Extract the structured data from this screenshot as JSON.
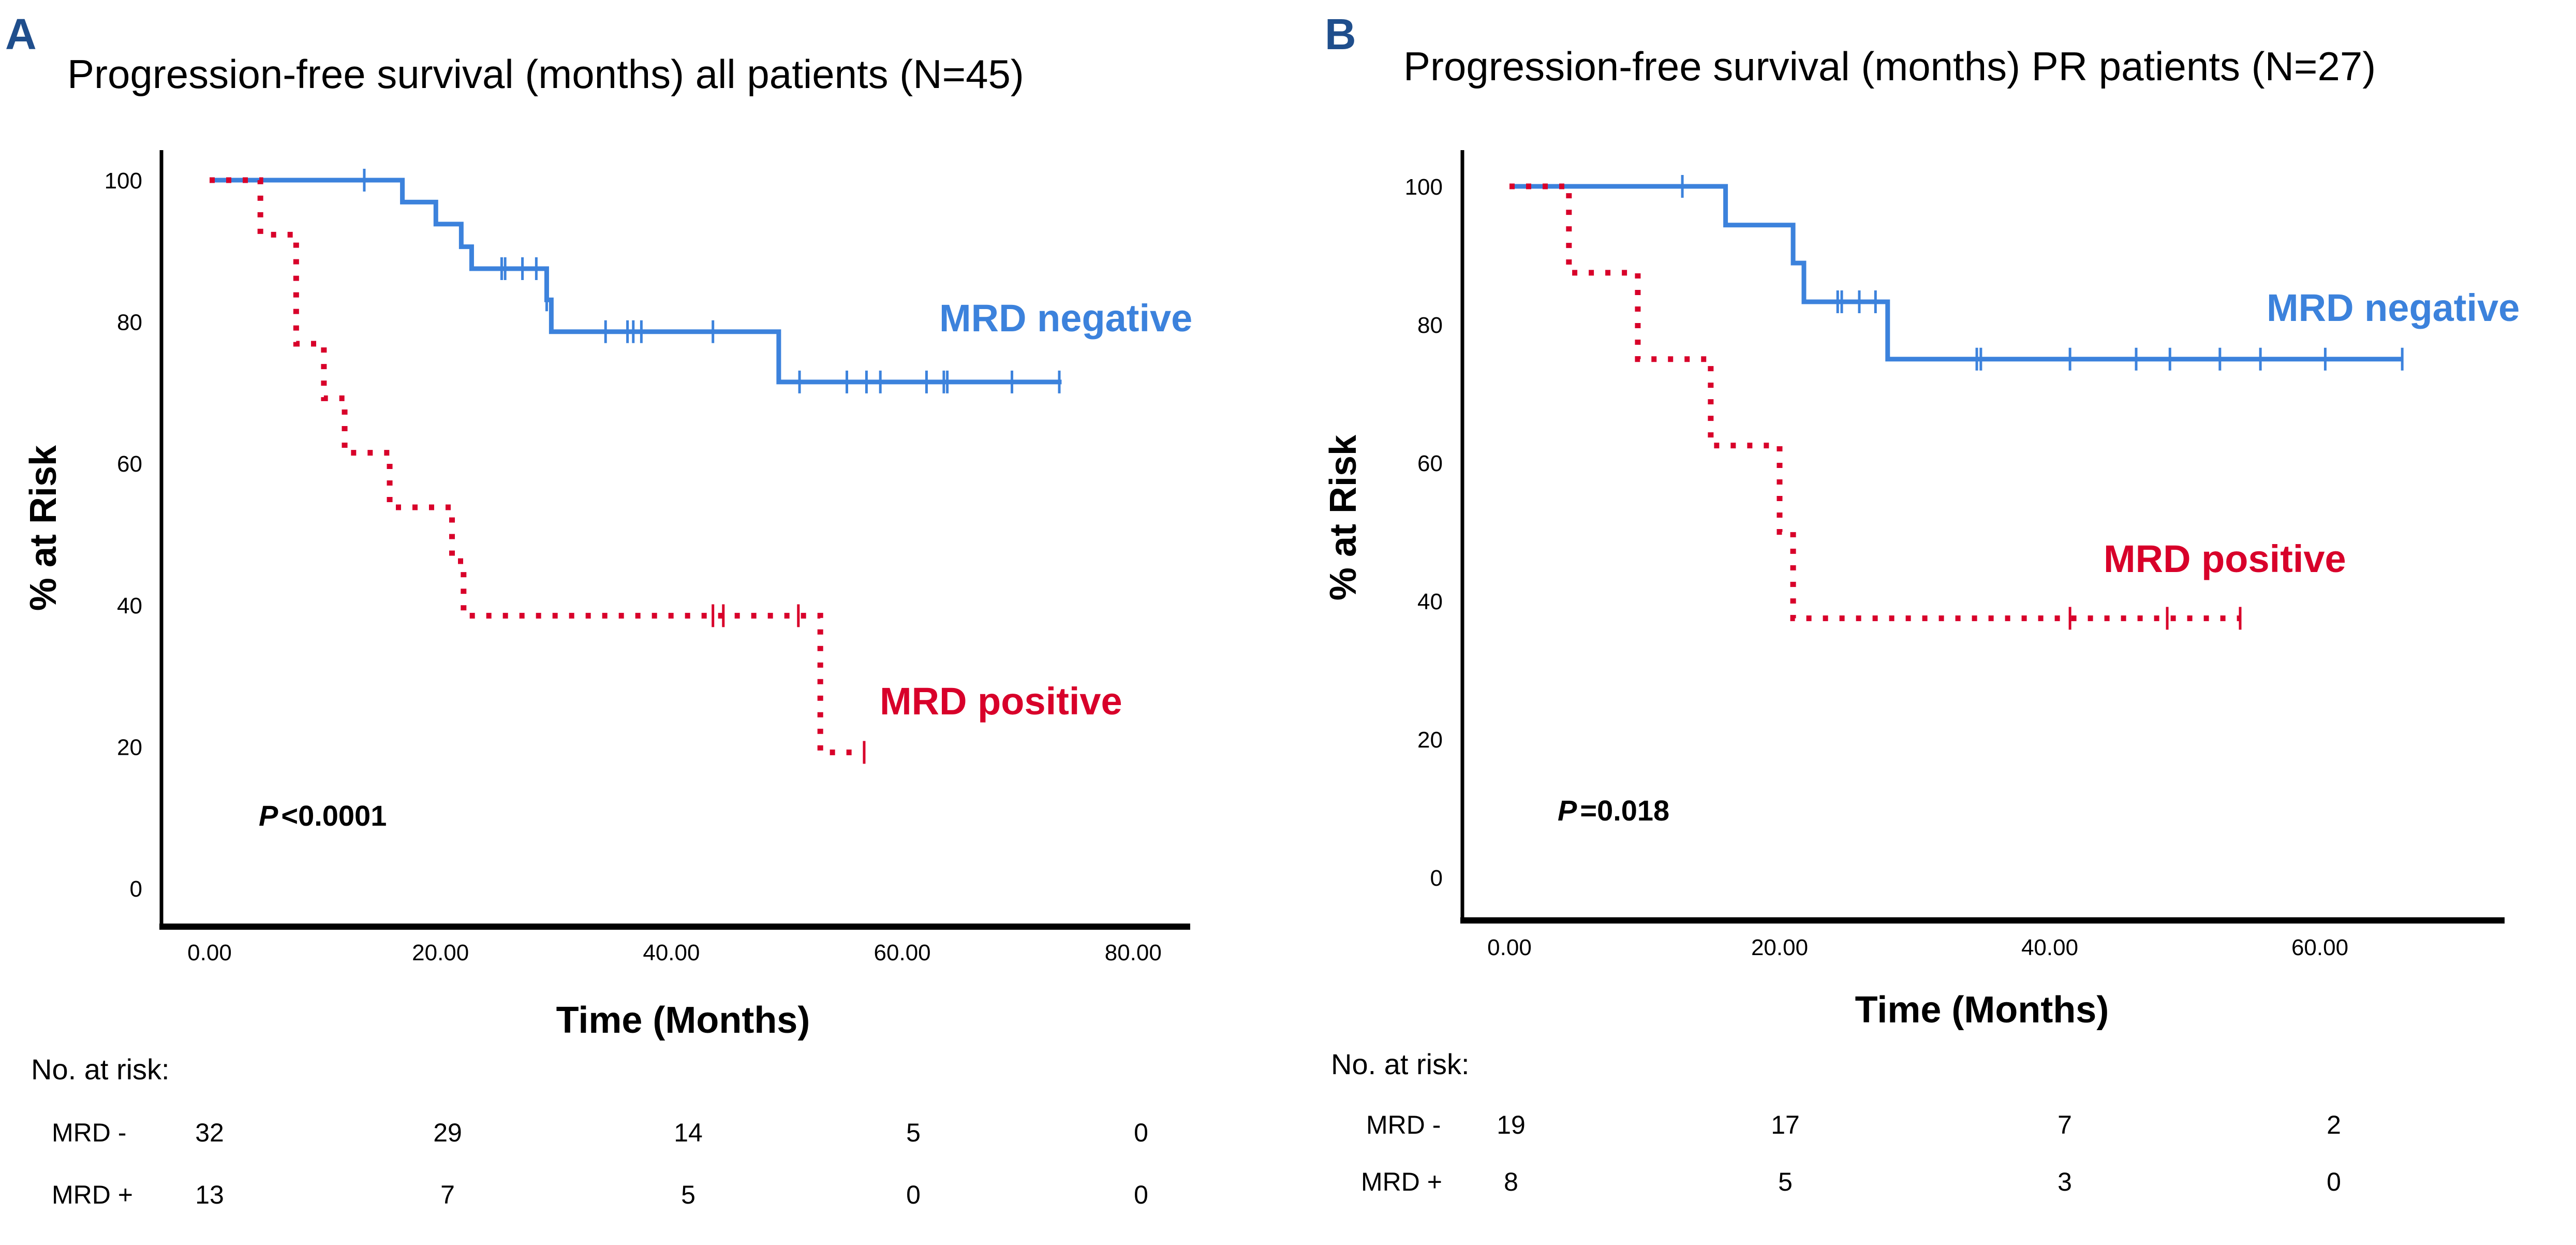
{
  "colors": {
    "mrd_negative": "#3C82DC",
    "mrd_positive": "#D8002A",
    "panel_letter": "#1F4E8C",
    "axis": "#000000"
  },
  "chart_data": [
    {
      "panel": "A",
      "type": "line",
      "subtype": "kaplan-meier",
      "title": "Progression-free survival (months) all patients (N=45)",
      "xlabel": "Time (Months)",
      "ylabel": "% at Risk",
      "xlim": [
        0,
        80
      ],
      "ylim": [
        0,
        100
      ],
      "xticks": [
        0,
        20,
        40,
        60,
        80
      ],
      "xtick_labels": [
        "0.00",
        "20.00",
        "40.00",
        "60.00",
        "80.00"
      ],
      "yticks": [
        0,
        20,
        40,
        60,
        80,
        100
      ],
      "ytick_labels": [
        "0",
        "20",
        "40",
        "60",
        "80",
        "100"
      ],
      "grid": false,
      "annotation": {
        "p_prefix": "P",
        "p_text": "<0.0001"
      },
      "series": [
        {
          "name": "MRD negative",
          "style": "solid",
          "color_key": "mrd_negative",
          "steps": [
            [
              0,
              100
            ],
            [
              16.7,
              96.9
            ],
            [
              19.6,
              93.8
            ],
            [
              21.8,
              90.6
            ],
            [
              22.7,
              87.5
            ],
            [
              29.2,
              83.1
            ],
            [
              29.6,
              78.6
            ],
            [
              49.3,
              71.5
            ]
          ],
          "end": 73.8,
          "censored": [
            13.4,
            25.3,
            25.6,
            27.1,
            28.3,
            29.2,
            34.3,
            36.2,
            36.7,
            37.4,
            43.6,
            51.1,
            55.2,
            56.9,
            58.1,
            62.1,
            63.6,
            63.9,
            69.5,
            73.6
          ]
        },
        {
          "name": "MRD positive",
          "style": "dotted",
          "color_key": "mrd_positive",
          "steps": [
            [
              0,
              100
            ],
            [
              4.4,
              92.3
            ],
            [
              7.5,
              76.9
            ],
            [
              9.9,
              69.2
            ],
            [
              11.7,
              61.5
            ],
            [
              15.6,
              53.8
            ],
            [
              21.0,
              46.2
            ],
            [
              22.0,
              38.5
            ],
            [
              52.9,
              19.2
            ]
          ],
          "end": 56.7,
          "censored": [
            43.6,
            44.5,
            51.0,
            56.7
          ]
        }
      ],
      "risk_table": {
        "heading": "No. at risk:",
        "rows": [
          {
            "label": "MRD -",
            "values": [
              "32",
              "29",
              "14",
              "5",
              "0"
            ]
          },
          {
            "label": "MRD +",
            "values": [
              "13",
              "7",
              "5",
              "0",
              "0"
            ]
          }
        ]
      }
    },
    {
      "panel": "B",
      "type": "line",
      "subtype": "kaplan-meier",
      "title": "Progression-free survival (months) PR patients (N=27)",
      "xlabel": "Time (Months)",
      "ylabel": "% at Risk",
      "xlim": [
        0,
        70
      ],
      "ylim": [
        0,
        100
      ],
      "xticks": [
        0,
        20,
        40,
        60
      ],
      "xtick_labels": [
        "0.00",
        "20.00",
        "40.00",
        "60.00"
      ],
      "yticks": [
        0,
        20,
        40,
        60,
        80,
        100
      ],
      "ytick_labels": [
        "0",
        "20",
        "40",
        "60",
        "80",
        "100"
      ],
      "grid": false,
      "annotation": {
        "p_prefix": "P",
        "p_text": "=0.018"
      },
      "series": [
        {
          "name": "MRD negative",
          "style": "solid",
          "color_key": "mrd_negative",
          "steps": [
            [
              0,
              100
            ],
            [
              16.0,
              94.4
            ],
            [
              21.0,
              88.9
            ],
            [
              21.8,
              83.3
            ],
            [
              28.0,
              75.0
            ]
          ],
          "end": 66.1,
          "censored": [
            12.8,
            24.3,
            24.6,
            25.9,
            27.1,
            34.6,
            34.9,
            41.5,
            46.4,
            48.9,
            52.6,
            55.6,
            60.4,
            66.1
          ]
        },
        {
          "name": "MRD positive",
          "style": "dotted",
          "color_key": "mrd_positive",
          "steps": [
            [
              0,
              100
            ],
            [
              4.4,
              87.5
            ],
            [
              9.5,
              75.0
            ],
            [
              14.9,
              62.5
            ],
            [
              20.0,
              50.0
            ],
            [
              21.0,
              37.5
            ]
          ],
          "end": 54.1,
          "censored": [
            41.5,
            48.7,
            54.1
          ]
        }
      ],
      "risk_table": {
        "heading": "No. at risk:",
        "rows": [
          {
            "label": "MRD -",
            "values": [
              "19",
              "17",
              "7",
              "2"
            ]
          },
          {
            "label": "MRD +",
            "values": [
              "8",
              "5",
              "3",
              "0"
            ]
          }
        ]
      }
    }
  ]
}
